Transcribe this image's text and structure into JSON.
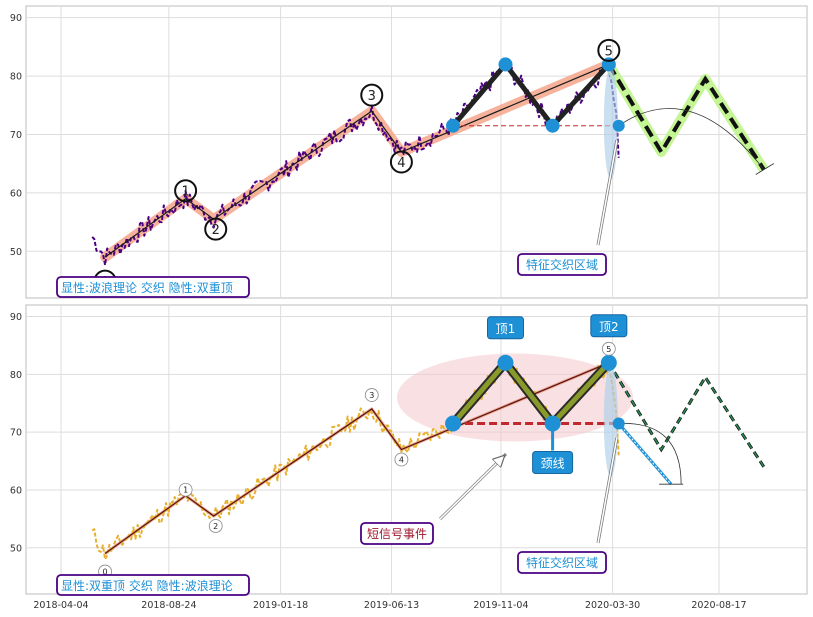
{
  "chart_data": [
    {
      "type": "line",
      "panel": "top",
      "ylim": [
        42,
        92
      ],
      "yticks": [
        "50",
        "60",
        "70",
        "80",
        "90"
      ],
      "grid": true,
      "price_color": "#4b0082",
      "wave_points": [
        {
          "x": "2018-06-01",
          "y": 49,
          "label": "0"
        },
        {
          "x": "2018-09-15",
          "y": 59,
          "label": "1"
        },
        {
          "x": "2018-10-22",
          "y": 55.5,
          "label": "2"
        },
        {
          "x": "2019-05-18",
          "y": 74,
          "label": "3"
        },
        {
          "x": "2019-06-26",
          "y": 67,
          "label": "4"
        },
        {
          "x": "2020-03-25",
          "y": 82,
          "label": "5"
        }
      ],
      "pattern_points": [
        {
          "x": "2019-09-02",
          "y": 71.5
        },
        {
          "x": "2019-11-10",
          "y": 82
        },
        {
          "x": "2020-01-11",
          "y": 71.5
        },
        {
          "x": "2020-03-25",
          "y": 82
        },
        {
          "x": "2020-04-07",
          "y": 71.5
        }
      ],
      "projection_points": [
        {
          "x": "2020-03-25",
          "y": 82
        },
        {
          "x": "2020-06-02",
          "y": 67
        },
        {
          "x": "2020-07-30",
          "y": 79.5
        },
        {
          "x": "2020-10-15",
          "y": 64
        }
      ],
      "neckline_y": 71.5,
      "callout": "特征交织区域",
      "caption": "显性:波浪理论 交织 隐性:双重顶"
    },
    {
      "type": "line",
      "panel": "bottom",
      "ylim": [
        42,
        92
      ],
      "yticks": [
        "50",
        "60",
        "70",
        "80",
        "90"
      ],
      "grid": true,
      "price_color": "#e8b030",
      "wave_points": [
        {
          "x": "2018-06-01",
          "y": 49,
          "label": "0"
        },
        {
          "x": "2018-09-15",
          "y": 59,
          "label": "1"
        },
        {
          "x": "2018-10-22",
          "y": 55.5,
          "label": "2"
        },
        {
          "x": "2019-05-18",
          "y": 74,
          "label": "3"
        },
        {
          "x": "2019-06-26",
          "y": 67,
          "label": "4"
        },
        {
          "x": "2020-03-25",
          "y": 82,
          "label": "5"
        }
      ],
      "pattern_points": [
        {
          "x": "2019-09-02",
          "y": 71.5
        },
        {
          "x": "2019-11-10",
          "y": 82
        },
        {
          "x": "2020-01-11",
          "y": 71.5
        },
        {
          "x": "2020-03-25",
          "y": 82
        },
        {
          "x": "2020-04-07",
          "y": 71.5
        }
      ],
      "projection_points": [
        {
          "x": "2020-03-25",
          "y": 82
        },
        {
          "x": "2020-06-02",
          "y": 67
        },
        {
          "x": "2020-07-30",
          "y": 79.5
        },
        {
          "x": "2020-10-15",
          "y": 64
        }
      ],
      "neckline_y": 71.5,
      "top1_label": "顶1",
      "top2_label": "顶2",
      "neck_label": "颈线",
      "event_label": "短信号事件",
      "callout": "特征交织区域",
      "caption": "显性:双重顶 交织 隐性:波浪理论"
    }
  ],
  "xticks": [
    "2018-04-04",
    "2018-08-24",
    "2019-01-18",
    "2019-06-13",
    "2019-11-04",
    "2020-03-30",
    "2020-08-17"
  ],
  "colors": {
    "wave_band": "#f4a58a",
    "pattern_point": "#1e90d6",
    "projection_top": "#bff58a",
    "projection_bottom": "#2e8b57",
    "neckline": "#c0282d",
    "caption_border": "#4b0082",
    "callout_text": "#1e90d6",
    "event_text": "#a0182d"
  }
}
